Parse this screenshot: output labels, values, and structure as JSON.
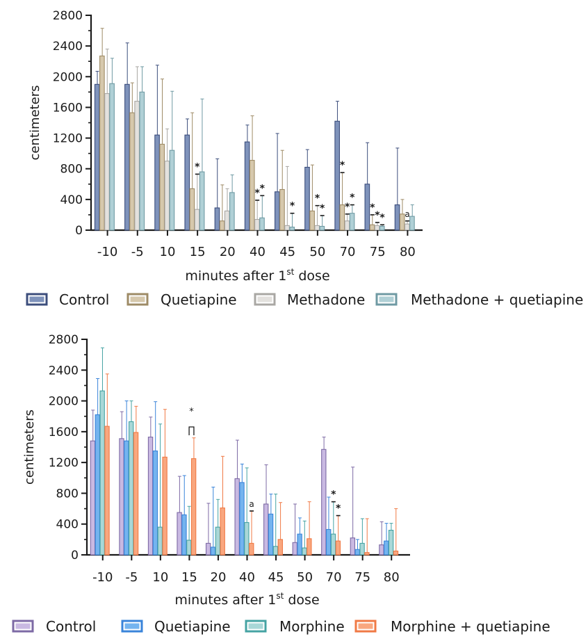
{
  "chart_data": [
    {
      "type": "bar",
      "ylabel": "centimeters",
      "xlabel": "minutes after 1st dose",
      "xlabel_parts": {
        "before": "minutes after 1",
        "sup": "st",
        "after": " dose"
      },
      "ylim": [
        0,
        2800
      ],
      "yticks": [
        "0",
        "400",
        "800",
        "1200",
        "1600",
        "2000",
        "2400",
        "2800"
      ],
      "categories": [
        "-10",
        "-5",
        "10",
        "15",
        "20",
        "40",
        "45",
        "50",
        "70",
        "75",
        "80"
      ],
      "legend_placement": "bottom",
      "series": [
        {
          "name": "Control",
          "color": "#7f93bb",
          "stroke": "#3c4e7c",
          "values": [
            1900,
            1900,
            1240,
            1240,
            290,
            1150,
            500,
            820,
            1420,
            600,
            330
          ],
          "error": [
            170,
            540,
            910,
            210,
            640,
            220,
            760,
            230,
            260,
            540,
            740
          ]
        },
        {
          "name": "Quetiapine",
          "color": "#d6c8ac",
          "stroke": "#9e8b66",
          "values": [
            2270,
            1530,
            1120,
            540,
            120,
            910,
            530,
            250,
            330,
            70,
            210
          ],
          "error": [
            360,
            390,
            850,
            990,
            470,
            580,
            510,
            600,
            420,
            130,
            190
          ]
        },
        {
          "name": "Methadone",
          "color": "#e3e1de",
          "stroke": "#a9a7a3",
          "values": [
            1780,
            1680,
            900,
            270,
            250,
            140,
            60,
            60,
            120,
            60,
            80
          ],
          "error": [
            580,
            450,
            420,
            460,
            290,
            250,
            770,
            260,
            90,
            40,
            40
          ]
        },
        {
          "name": "Methadone + quetiapine",
          "color": "#b0d0d6",
          "stroke": "#6f9aa3",
          "values": [
            1910,
            1800,
            1040,
            760,
            490,
            160,
            40,
            50,
            220,
            50,
            180
          ],
          "error": [
            330,
            330,
            770,
            950,
            230,
            290,
            180,
            140,
            110,
            20,
            150
          ]
        }
      ],
      "annotations": [
        {
          "category": "15",
          "series": 2,
          "text": "*"
        },
        {
          "category": "40",
          "series": 2,
          "text": "*"
        },
        {
          "category": "40",
          "series": 3,
          "text": "*"
        },
        {
          "category": "45",
          "series": 3,
          "text": "*"
        },
        {
          "category": "50",
          "series": 2,
          "text": "*"
        },
        {
          "category": "50",
          "series": 3,
          "text": "*"
        },
        {
          "category": "70",
          "series": 1,
          "text": "*"
        },
        {
          "category": "70",
          "series": 2,
          "text": "*"
        },
        {
          "category": "70",
          "series": 3,
          "text": "*"
        },
        {
          "category": "75",
          "series": 1,
          "text": "*"
        },
        {
          "category": "75",
          "series": 2,
          "text": "*"
        },
        {
          "category": "75",
          "series": 3,
          "text": "*"
        },
        {
          "category": "80",
          "series": 2,
          "text": "a"
        }
      ]
    },
    {
      "type": "bar",
      "ylabel": "centimeters",
      "xlabel": "minutes after 1st dose",
      "xlabel_parts": {
        "before": "minutes after 1",
        "sup": "st",
        "after": " dose"
      },
      "ylim": [
        0,
        2800
      ],
      "yticks": [
        "0",
        "400",
        "800",
        "1200",
        "1600",
        "2000",
        "2400",
        "2800"
      ],
      "categories": [
        "-10",
        "-5",
        "10",
        "15",
        "20",
        "40",
        "45",
        "50",
        "70",
        "75",
        "80"
      ],
      "legend_placement": "bottom",
      "series": [
        {
          "name": "Control",
          "color": "#c9b9e2",
          "stroke": "#7d6aa5",
          "values": [
            1480,
            1510,
            1530,
            550,
            150,
            990,
            660,
            160,
            1370,
            220,
            130
          ],
          "error": [
            400,
            350,
            260,
            470,
            520,
            500,
            510,
            500,
            160,
            920,
            300
          ]
        },
        {
          "name": "Quetiapine",
          "color": "#74b4ef",
          "stroke": "#3a84da",
          "values": [
            1820,
            1480,
            1350,
            520,
            100,
            940,
            530,
            270,
            330,
            70,
            180
          ],
          "error": [
            470,
            520,
            640,
            510,
            780,
            240,
            260,
            210,
            420,
            130,
            230
          ]
        },
        {
          "name": "Morphine",
          "color": "#a9d7d7",
          "stroke": "#45a3a3",
          "values": [
            2130,
            1730,
            360,
            190,
            360,
            420,
            110,
            90,
            270,
            150,
            320
          ],
          "error": [
            560,
            270,
            1340,
            440,
            360,
            710,
            680,
            350,
            420,
            320,
            90
          ]
        },
        {
          "name": "Morphine + quetiapine",
          "color": "#f9a77f",
          "stroke": "#f07a45",
          "values": [
            1670,
            1590,
            1270,
            1250,
            610,
            150,
            200,
            210,
            180,
            30,
            50
          ],
          "error": [
            680,
            340,
            620,
            270,
            670,
            420,
            480,
            480,
            330,
            440,
            550
          ]
        }
      ],
      "annotations": [
        {
          "category": "15",
          "series": 2,
          "text": "*",
          "bracket_to_series": 3
        },
        {
          "category": "40",
          "series": 3,
          "text": "a"
        },
        {
          "category": "70",
          "series": 2,
          "text": "*"
        },
        {
          "category": "70",
          "series": 3,
          "text": "*"
        }
      ]
    }
  ]
}
